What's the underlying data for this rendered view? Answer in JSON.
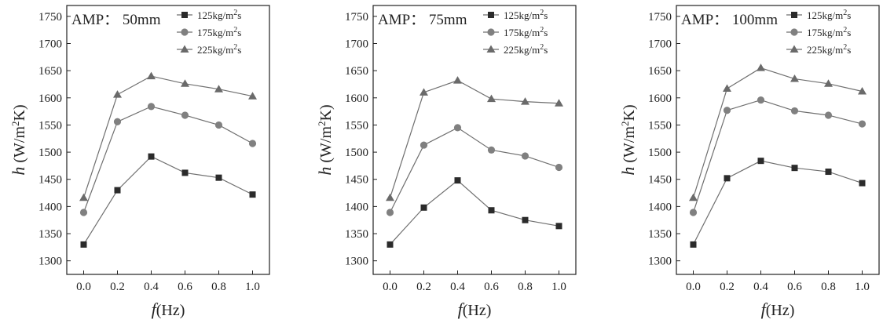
{
  "chart_data": [
    {
      "type": "line",
      "title": "AMP：  50mm",
      "xlabel": {
        "symbol": "f",
        "unit": "(Hz)"
      },
      "ylabel": {
        "symbol": "h",
        "unit_prefix": " (W/m",
        "sup": "2",
        "unit_suffix": "K)"
      },
      "xlim": [
        -0.1,
        1.1
      ],
      "ylim": [
        1275,
        1770
      ],
      "xticks": [
        0.0,
        0.2,
        0.4,
        0.6,
        0.8,
        1.0
      ],
      "xtick_labels": [
        "0.0",
        "0.2",
        "0.4",
        "0.6",
        "0.8",
        "1.0"
      ],
      "yticks": [
        1300,
        1350,
        1400,
        1450,
        1500,
        1550,
        1600,
        1650,
        1700,
        1750
      ],
      "ytick_labels": [
        "1300",
        "1350",
        "1400",
        "1450",
        "1500",
        "1550",
        "1600",
        "1650",
        "1700",
        "1750"
      ],
      "legend_position": "top-right",
      "x": [
        0.0,
        0.2,
        0.4,
        0.6,
        0.8,
        1.0
      ],
      "series": [
        {
          "name_prefix": "125kg/m",
          "name_sup": "2",
          "name_suffix": "s",
          "marker": "square",
          "values": [
            1330,
            1430,
            1492,
            1462,
            1453,
            1422
          ]
        },
        {
          "name_prefix": "175kg/m",
          "name_sup": "2",
          "name_suffix": "s",
          "marker": "circle",
          "values": [
            1389,
            1556,
            1584,
            1568,
            1550,
            1516
          ]
        },
        {
          "name_prefix": "225kg/m",
          "name_sup": "2",
          "name_suffix": "s",
          "marker": "triangle",
          "values": [
            1416,
            1606,
            1640,
            1626,
            1616,
            1603
          ]
        }
      ]
    },
    {
      "type": "line",
      "title": "AMP：  75mm",
      "xlabel": {
        "symbol": "f",
        "unit": "(Hz)"
      },
      "ylabel": {
        "symbol": "h",
        "unit_prefix": " (W/m",
        "sup": "2",
        "unit_suffix": "K)"
      },
      "xlim": [
        -0.1,
        1.1
      ],
      "ylim": [
        1275,
        1770
      ],
      "xticks": [
        0.0,
        0.2,
        0.4,
        0.6,
        0.8,
        1.0
      ],
      "xtick_labels": [
        "0.0",
        "0.2",
        "0.4",
        "0.6",
        "0.8",
        "1.0"
      ],
      "yticks": [
        1300,
        1350,
        1400,
        1450,
        1500,
        1550,
        1600,
        1650,
        1700,
        1750
      ],
      "ytick_labels": [
        "1300",
        "1350",
        "1400",
        "1450",
        "1500",
        "1550",
        "1600",
        "1650",
        "1700",
        "1750"
      ],
      "legend_position": "top-right",
      "x": [
        0.0,
        0.2,
        0.4,
        0.6,
        0.8,
        1.0
      ],
      "series": [
        {
          "name_prefix": "125kg/m",
          "name_sup": "2",
          "name_suffix": "s",
          "marker": "square",
          "values": [
            1330,
            1398,
            1448,
            1393,
            1375,
            1364
          ]
        },
        {
          "name_prefix": "175kg/m",
          "name_sup": "2",
          "name_suffix": "s",
          "marker": "circle",
          "values": [
            1389,
            1513,
            1545,
            1504,
            1493,
            1472
          ]
        },
        {
          "name_prefix": "225kg/m",
          "name_sup": "2",
          "name_suffix": "s",
          "marker": "triangle",
          "values": [
            1416,
            1610,
            1632,
            1598,
            1593,
            1590
          ]
        }
      ]
    },
    {
      "type": "line",
      "title": "AMP：  100mm",
      "xlabel": {
        "symbol": "f",
        "unit": "(Hz)"
      },
      "ylabel": {
        "symbol": "h",
        "unit_prefix": " (W/m",
        "sup": "2",
        "unit_suffix": "K)"
      },
      "xlim": [
        -0.1,
        1.1
      ],
      "ylim": [
        1275,
        1770
      ],
      "xticks": [
        0.0,
        0.2,
        0.4,
        0.6,
        0.8,
        1.0
      ],
      "xtick_labels": [
        "0.0",
        "0.2",
        "0.4",
        "0.6",
        "0.8",
        "1.0"
      ],
      "yticks": [
        1300,
        1350,
        1400,
        1450,
        1500,
        1550,
        1600,
        1650,
        1700,
        1750
      ],
      "ytick_labels": [
        "1300",
        "1350",
        "1400",
        "1450",
        "1500",
        "1550",
        "1600",
        "1650",
        "1700",
        "1750"
      ],
      "legend_position": "top-right",
      "x": [
        0.0,
        0.2,
        0.4,
        0.6,
        0.8,
        1.0
      ],
      "series": [
        {
          "name_prefix": "125kg/m",
          "name_sup": "2",
          "name_suffix": "s",
          "marker": "square",
          "values": [
            1330,
            1452,
            1484,
            1471,
            1464,
            1443
          ]
        },
        {
          "name_prefix": "175kg/m",
          "name_sup": "2",
          "name_suffix": "s",
          "marker": "circle",
          "values": [
            1389,
            1577,
            1596,
            1576,
            1568,
            1552
          ]
        },
        {
          "name_prefix": "225kg/m",
          "name_sup": "2",
          "name_suffix": "s",
          "marker": "triangle",
          "values": [
            1416,
            1617,
            1655,
            1635,
            1626,
            1612
          ]
        }
      ]
    }
  ],
  "colors": {
    "line": "#6f6f6f",
    "marker_square": "#2b2b2b",
    "marker_circle": "#808080",
    "marker_triangle": "#6a6a6a",
    "axis": "#222222"
  }
}
